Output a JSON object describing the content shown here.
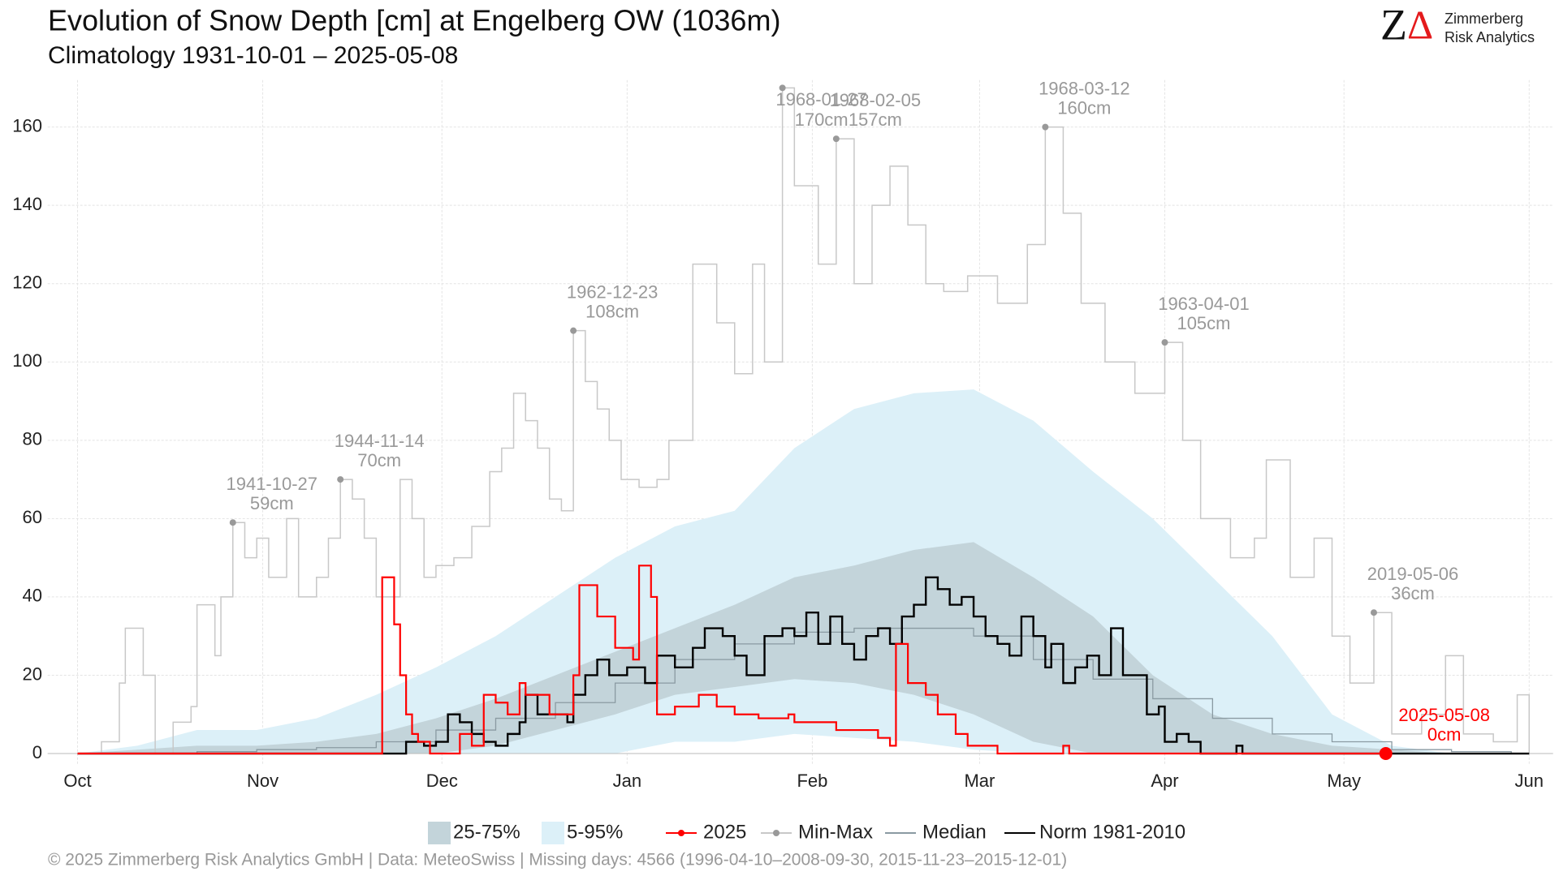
{
  "chart_data": {
    "type": "line",
    "title": "Evolution of Snow Depth [cm] at Engelberg  OW (1036m)",
    "subtitle": "Climatology 1931-10-01 – 2025-05-08",
    "logo": {
      "mark": "Z",
      "delta": "Δ",
      "line1": "Zimmerberg",
      "line2": "Risk Analytics"
    },
    "footer": "©  2025 Zimmerberg Risk Analytics GmbH | Data: MeteoSwiss | Missing days: 4566 (1996-04-10–2008-09-30, 2015-11-23–2015-12-01)",
    "xlim": [
      -5,
      247
    ],
    "xticks": [
      {
        "value": 0,
        "label": "Oct"
      },
      {
        "value": 31,
        "label": "Nov"
      },
      {
        "value": 61,
        "label": "Dec"
      },
      {
        "value": 92,
        "label": "Jan"
      },
      {
        "value": 123,
        "label": "Feb"
      },
      {
        "value": 151,
        "label": "Mar"
      },
      {
        "value": 182,
        "label": "Apr"
      },
      {
        "value": 212,
        "label": "May"
      },
      {
        "value": 243,
        "label": "Jun"
      }
    ],
    "ylim": [
      -3,
      172
    ],
    "yticks": [
      0,
      20,
      40,
      60,
      80,
      100,
      120,
      140,
      160
    ],
    "grid": true,
    "bands": [
      {
        "name": "5-95%",
        "color": "#dcf0f8",
        "x": [
          0,
          10,
          20,
          30,
          40,
          50,
          60,
          70,
          80,
          90,
          100,
          110,
          120,
          130,
          140,
          150,
          160,
          170,
          180,
          190,
          200,
          210,
          220,
          230,
          240
        ],
        "upper": [
          0,
          2,
          6,
          6,
          9,
          15,
          22,
          30,
          40,
          50,
          58,
          62,
          78,
          88,
          92,
          93,
          85,
          72,
          60,
          45,
          30,
          10,
          2,
          0,
          0
        ],
        "lower": [
          0,
          0,
          0,
          0,
          0,
          0,
          0,
          0,
          0,
          0,
          3,
          3,
          5,
          4,
          3,
          1,
          0,
          0,
          0,
          0,
          0,
          0,
          0,
          0,
          0
        ]
      },
      {
        "name": "25-75%",
        "color": "#c3d4da",
        "x": [
          0,
          10,
          20,
          30,
          40,
          50,
          60,
          70,
          80,
          90,
          100,
          110,
          120,
          130,
          140,
          150,
          160,
          170,
          180,
          190,
          200,
          210,
          220,
          230,
          240
        ],
        "upper": [
          0,
          1,
          2,
          2,
          3,
          5,
          9,
          14,
          20,
          26,
          32,
          38,
          45,
          48,
          52,
          54,
          45,
          35,
          20,
          10,
          5,
          2,
          1,
          0,
          0
        ],
        "lower": [
          0,
          0,
          0,
          0,
          0,
          0,
          0,
          2,
          6,
          10,
          15,
          17,
          19,
          18,
          15,
          10,
          3,
          0,
          0,
          0,
          0,
          0,
          0,
          0,
          0
        ]
      }
    ],
    "series": [
      {
        "name": "Min-Max",
        "color": "#c8c8c8",
        "marker_color": "#999999",
        "x": [
          0,
          4,
          7,
          8,
          11,
          13,
          16,
          19,
          20,
          23,
          24,
          26,
          28,
          30,
          32,
          35,
          37,
          40,
          42,
          44,
          46,
          48,
          50,
          52,
          54,
          56,
          58,
          60,
          63,
          66,
          69,
          71,
          73,
          75,
          77,
          79,
          81,
          83,
          85,
          87,
          89,
          91,
          94,
          97,
          99,
          103,
          107,
          110,
          113,
          115,
          118,
          120,
          124,
          127,
          130,
          133,
          136,
          139,
          142,
          145,
          149,
          154,
          159,
          162,
          165,
          168,
          172,
          177,
          182,
          185,
          188,
          193,
          197,
          199,
          203,
          207,
          210,
          213,
          217,
          220,
          225,
          229,
          232,
          237,
          241,
          243
        ],
        "values": [
          0,
          3,
          18,
          32,
          20,
          0,
          8,
          12,
          38,
          25,
          40,
          59,
          50,
          55,
          45,
          60,
          40,
          45,
          55,
          70,
          65,
          55,
          40,
          40,
          70,
          60,
          45,
          48,
          50,
          58,
          72,
          78,
          92,
          85,
          78,
          65,
          62,
          108,
          95,
          88,
          80,
          70,
          68,
          70,
          80,
          125,
          110,
          97,
          125,
          100,
          170,
          145,
          125,
          157,
          120,
          140,
          150,
          135,
          120,
          118,
          122,
          115,
          130,
          160,
          138,
          115,
          100,
          92,
          105,
          80,
          60,
          50,
          55,
          75,
          45,
          55,
          30,
          18,
          36,
          5,
          10,
          25,
          5,
          3,
          15,
          0
        ]
      },
      {
        "name": "Median",
        "color": "#8a9aa2",
        "x": [
          0,
          10,
          20,
          30,
          40,
          50,
          60,
          70,
          80,
          90,
          100,
          110,
          120,
          130,
          140,
          150,
          160,
          170,
          180,
          190,
          200,
          210,
          220,
          230,
          240
        ],
        "values": [
          0,
          0,
          0.5,
          1,
          1.5,
          3,
          6,
          9,
          13,
          18,
          24,
          28,
          31,
          32,
          32,
          30,
          24,
          19,
          14,
          9,
          5,
          3,
          1,
          0.5,
          0
        ]
      },
      {
        "name": "Norm 1981-2010",
        "color": "#000000",
        "x": [
          0,
          50,
          55,
          58,
          60,
          62,
          64,
          66,
          68,
          70,
          72,
          74,
          75,
          77,
          80,
          82,
          83,
          85,
          87,
          89,
          92,
          95,
          97,
          100,
          103,
          105,
          108,
          110,
          112,
          115,
          118,
          120,
          122,
          124,
          126,
          128,
          130,
          132,
          134,
          136,
          138,
          140,
          142,
          144,
          146,
          148,
          150,
          152,
          154,
          156,
          158,
          160,
          162,
          163,
          165,
          167,
          169,
          171,
          173,
          175,
          177,
          179,
          181,
          182,
          184,
          186,
          188,
          194,
          195,
          243
        ],
        "values": [
          0,
          0,
          3,
          2,
          3,
          10,
          8,
          5,
          3,
          2,
          5,
          8,
          15,
          10,
          10,
          8,
          15,
          20,
          24,
          20,
          22,
          18,
          25,
          22,
          27,
          32,
          30,
          25,
          20,
          30,
          32,
          30,
          36,
          28,
          35,
          28,
          24,
          30,
          32,
          28,
          35,
          38,
          45,
          42,
          38,
          40,
          35,
          30,
          28,
          25,
          35,
          30,
          22,
          28,
          18,
          22,
          25,
          20,
          32,
          20,
          20,
          10,
          12,
          3,
          5,
          3,
          0,
          2,
          0,
          0
        ]
      },
      {
        "name": "2025",
        "color": "#ff0000",
        "x": [
          0,
          51,
          53,
          54,
          55,
          56,
          57,
          59,
          64,
          66,
          68,
          70,
          72,
          74,
          75,
          79,
          83,
          84,
          87,
          90,
          93,
          94,
          96,
          97,
          100,
          104,
          107,
          110,
          114,
          119,
          120,
          127,
          134,
          136,
          137,
          139,
          142,
          144,
          147,
          149,
          154,
          165,
          166,
          219
        ],
        "values": [
          0,
          45,
          33,
          20,
          10,
          5,
          3,
          0,
          5,
          2,
          15,
          13,
          10,
          18,
          15,
          10,
          20,
          43,
          35,
          27,
          24,
          48,
          40,
          10,
          12,
          15,
          12,
          10,
          9,
          10,
          8,
          6,
          4,
          2,
          28,
          18,
          15,
          10,
          5,
          2,
          0,
          2,
          0,
          0
        ]
      }
    ],
    "annotations": [
      {
        "date": "1941-10-27",
        "label": "59cm",
        "x": 26,
        "value": 59
      },
      {
        "date": "1944-11-14",
        "label": "70cm",
        "x": 44,
        "value": 70
      },
      {
        "date": "1962-12-23",
        "label": "108cm",
        "x": 83,
        "value": 108
      },
      {
        "date": "1968-01-27",
        "label": "170cm",
        "x": 118,
        "value": 170
      },
      {
        "date": "1968-02-05",
        "label": "157cm",
        "x": 127,
        "value": 157
      },
      {
        "date": "1968-03-12",
        "label": "160cm",
        "x": 162,
        "value": 160
      },
      {
        "date": "1963-04-01",
        "label": "105cm",
        "x": 182,
        "value": 105
      },
      {
        "date": "2019-05-06",
        "label": "36cm",
        "x": 217,
        "value": 36
      }
    ],
    "last": {
      "date": "2025-05-08",
      "label": "0cm",
      "x": 219,
      "value": 0,
      "color": "#ff0000"
    }
  }
}
